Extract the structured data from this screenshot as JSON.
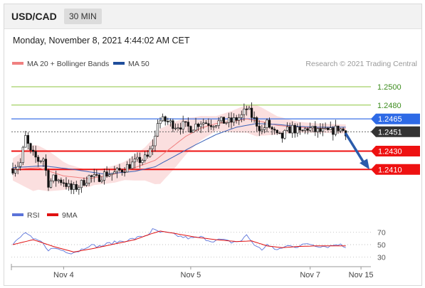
{
  "header": {
    "symbol": "USD/CAD",
    "timeframe": "30 MIN"
  },
  "timestamp": "Monday, November 8, 2021 4:44:02 AM CET",
  "legend": {
    "ma20": {
      "label": "MA 20 + Bollinger Bands",
      "color": "#f08080"
    },
    "ma50": {
      "label": "MA 50",
      "color": "#1f4e9c"
    },
    "rsi": {
      "label": "RSI",
      "color": "#5b73d9"
    },
    "ma9": {
      "label": "9MA",
      "color": "#e01010"
    }
  },
  "copyright": "Research © 2021 Trading Central",
  "chart_data": {
    "type": "candlestick",
    "symbol": "USD/CAD",
    "timeframe": "30 MIN",
    "ylim": [
      1.2377,
      1.2517
    ],
    "levels": [
      {
        "label": "1.2500",
        "value": 1.25,
        "kind": "green"
      },
      {
        "label": "1.2480",
        "value": 1.248,
        "kind": "green"
      },
      {
        "label": "1.2465",
        "value": 1.2465,
        "kind": "blue"
      },
      {
        "label": "1.2451",
        "value": 1.2451,
        "kind": "last"
      },
      {
        "label": "1.2430",
        "value": 1.243,
        "kind": "red"
      },
      {
        "label": "1.2410",
        "value": 1.241,
        "kind": "red"
      }
    ],
    "arrow": {
      "from": 1.2451,
      "to": 1.241,
      "direction": "down"
    },
    "x_labels": [
      "Nov 4",
      "Nov 5",
      "Nov 7",
      "Nov 15"
    ],
    "x_label_index": [
      20,
      70,
      117,
      137
    ],
    "n_bars": 132,
    "close_anchors": [
      [
        0,
        1.2411
      ],
      [
        3,
        1.2417
      ],
      [
        5,
        1.2445
      ],
      [
        7,
        1.2428
      ],
      [
        10,
        1.242
      ],
      [
        12,
        1.2422
      ],
      [
        14,
        1.2395
      ],
      [
        16,
        1.24
      ],
      [
        20,
        1.2397
      ],
      [
        23,
        1.2388
      ],
      [
        26,
        1.2392
      ],
      [
        30,
        1.2402
      ],
      [
        33,
        1.24
      ],
      [
        36,
        1.2405
      ],
      [
        40,
        1.2406
      ],
      [
        43,
        1.241
      ],
      [
        46,
        1.2415
      ],
      [
        50,
        1.242
      ],
      [
        53,
        1.2423
      ],
      [
        56,
        1.2445
      ],
      [
        57,
        1.2463
      ],
      [
        60,
        1.2463
      ],
      [
        64,
        1.2458
      ],
      [
        67,
        1.2458
      ],
      [
        70,
        1.2455
      ],
      [
        74,
        1.2462
      ],
      [
        78,
        1.246
      ],
      [
        82,
        1.2462
      ],
      [
        86,
        1.2462
      ],
      [
        90,
        1.2468
      ],
      [
        92,
        1.2476
      ],
      [
        94,
        1.2468
      ],
      [
        96,
        1.246
      ],
      [
        98,
        1.2452
      ],
      [
        100,
        1.246
      ],
      [
        104,
        1.2446
      ],
      [
        106,
        1.2445
      ],
      [
        108,
        1.2452
      ],
      [
        110,
        1.2455
      ],
      [
        113,
        1.245
      ],
      [
        116,
        1.2455
      ],
      [
        119,
        1.2452
      ],
      [
        122,
        1.2451
      ],
      [
        125,
        1.2451
      ],
      [
        128,
        1.2455
      ],
      [
        131,
        1.2451
      ]
    ],
    "ma20_anchors": [
      [
        0,
        1.241
      ],
      [
        10,
        1.2412
      ],
      [
        20,
        1.2403
      ],
      [
        30,
        1.24
      ],
      [
        40,
        1.2405
      ],
      [
        48,
        1.2412
      ],
      [
        56,
        1.242
      ],
      [
        62,
        1.2433
      ],
      [
        68,
        1.2446
      ],
      [
        74,
        1.2455
      ],
      [
        80,
        1.246
      ],
      [
        86,
        1.2462
      ],
      [
        92,
        1.2465
      ],
      [
        98,
        1.2462
      ],
      [
        104,
        1.2458
      ],
      [
        112,
        1.2456
      ],
      [
        120,
        1.2455
      ],
      [
        131,
        1.2454
      ]
    ],
    "band_width_anchors": [
      [
        0,
        0.0012
      ],
      [
        8,
        0.0025
      ],
      [
        14,
        0.0022
      ],
      [
        22,
        0.0013
      ],
      [
        32,
        0.0008
      ],
      [
        44,
        0.001
      ],
      [
        52,
        0.0018
      ],
      [
        58,
        0.003
      ],
      [
        64,
        0.0025
      ],
      [
        72,
        0.0015
      ],
      [
        80,
        0.0008
      ],
      [
        90,
        0.0014
      ],
      [
        96,
        0.0017
      ],
      [
        104,
        0.001
      ],
      [
        112,
        0.0006
      ],
      [
        120,
        0.0005
      ],
      [
        131,
        0.0005
      ]
    ],
    "ma50_anchors": [
      [
        0,
        1.2412
      ],
      [
        12,
        1.2414
      ],
      [
        24,
        1.241
      ],
      [
        36,
        1.2405
      ],
      [
        48,
        1.2408
      ],
      [
        56,
        1.2413
      ],
      [
        64,
        1.2425
      ],
      [
        72,
        1.2437
      ],
      [
        80,
        1.2448
      ],
      [
        88,
        1.2456
      ],
      [
        96,
        1.246
      ],
      [
        104,
        1.2459
      ],
      [
        112,
        1.2457
      ],
      [
        120,
        1.2456
      ],
      [
        131,
        1.2456
      ]
    ],
    "rsi": {
      "ylim": [
        20,
        80
      ],
      "ticks": [
        70,
        50,
        30
      ],
      "rsi_anchors": [
        [
          0,
          50
        ],
        [
          3,
          62
        ],
        [
          5,
          70
        ],
        [
          8,
          58
        ],
        [
          11,
          55
        ],
        [
          14,
          42
        ],
        [
          17,
          44
        ],
        [
          20,
          40
        ],
        [
          23,
          37
        ],
        [
          26,
          40
        ],
        [
          30,
          49
        ],
        [
          34,
          47
        ],
        [
          38,
          52
        ],
        [
          42,
          55
        ],
        [
          46,
          58
        ],
        [
          50,
          62
        ],
        [
          53,
          66
        ],
        [
          55,
          74
        ],
        [
          58,
          70
        ],
        [
          62,
          68
        ],
        [
          66,
          63
        ],
        [
          70,
          60
        ],
        [
          74,
          62
        ],
        [
          78,
          56
        ],
        [
          82,
          58
        ],
        [
          86,
          54
        ],
        [
          90,
          56
        ],
        [
          92,
          66
        ],
        [
          94,
          55
        ],
        [
          96,
          46
        ],
        [
          98,
          42
        ],
        [
          100,
          50
        ],
        [
          103,
          42
        ],
        [
          106,
          44
        ],
        [
          109,
          50
        ],
        [
          112,
          46
        ],
        [
          116,
          52
        ],
        [
          120,
          48
        ],
        [
          124,
          47
        ],
        [
          128,
          51
        ],
        [
          131,
          46
        ]
      ],
      "ma9_anchors": [
        [
          0,
          50
        ],
        [
          8,
          58
        ],
        [
          16,
          47
        ],
        [
          24,
          38
        ],
        [
          32,
          44
        ],
        [
          40,
          51
        ],
        [
          48,
          58
        ],
        [
          54,
          67
        ],
        [
          58,
          72
        ],
        [
          64,
          68
        ],
        [
          72,
          62
        ],
        [
          80,
          58
        ],
        [
          88,
          55
        ],
        [
          94,
          56
        ],
        [
          100,
          48
        ],
        [
          106,
          45
        ],
        [
          112,
          47
        ],
        [
          120,
          48
        ],
        [
          131,
          48
        ]
      ]
    }
  }
}
